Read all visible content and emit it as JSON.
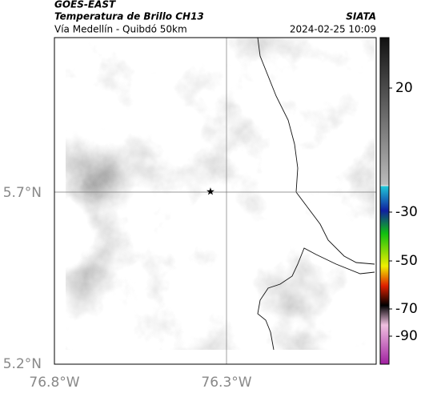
{
  "header": {
    "source": "GOES-EAST",
    "title": "Temperatura de Brillo CH13",
    "subtitle": "Vía Medellín - Quibdó 50km",
    "agency": "SIATA",
    "datetime": "2024-02-25 10:09"
  },
  "map": {
    "lat_ticks": [
      "5.7°N",
      "5.2°N"
    ],
    "lon_ticks": [
      "76.8°W",
      "76.3°W"
    ]
  },
  "colorbar": {
    "ticks": [
      20,
      -30,
      -50,
      -70,
      -90
    ]
  }
}
